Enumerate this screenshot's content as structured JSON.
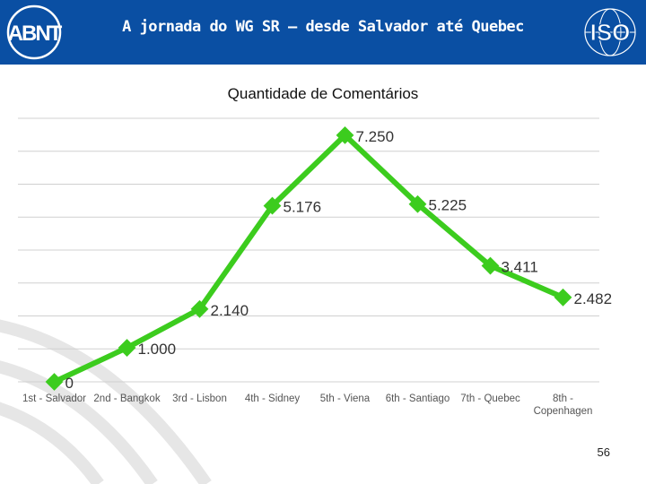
{
  "header": {
    "title": "A jornada do WG SR – desde Salvador até Quebec",
    "bg_color": "#0a4fa3",
    "left_logo": "ABNT",
    "right_logo": "ISO"
  },
  "chart_data": {
    "type": "line",
    "title": "Quantidade de Comentários",
    "categories": [
      "1st - Salvador",
      "2nd - Bangkok",
      "3rd - Lisbon",
      "4th - Sidney",
      "5th - Viena",
      "6th - Santiago",
      "7th - Quebec",
      "8th - Copenhagen"
    ],
    "series": [
      {
        "values": [
          0,
          1000,
          2140,
          5176,
          7250,
          5225,
          3411,
          2482
        ],
        "labels": [
          "0",
          "1.000",
          "2.140",
          "5.176",
          "7.250",
          "5.225",
          "3.411",
          "2.482"
        ],
        "color": "#3ccc1e"
      }
    ],
    "ylim": [
      0,
      7800
    ],
    "grid": true,
    "legend": "none"
  },
  "footer": {
    "page_number": "56"
  }
}
